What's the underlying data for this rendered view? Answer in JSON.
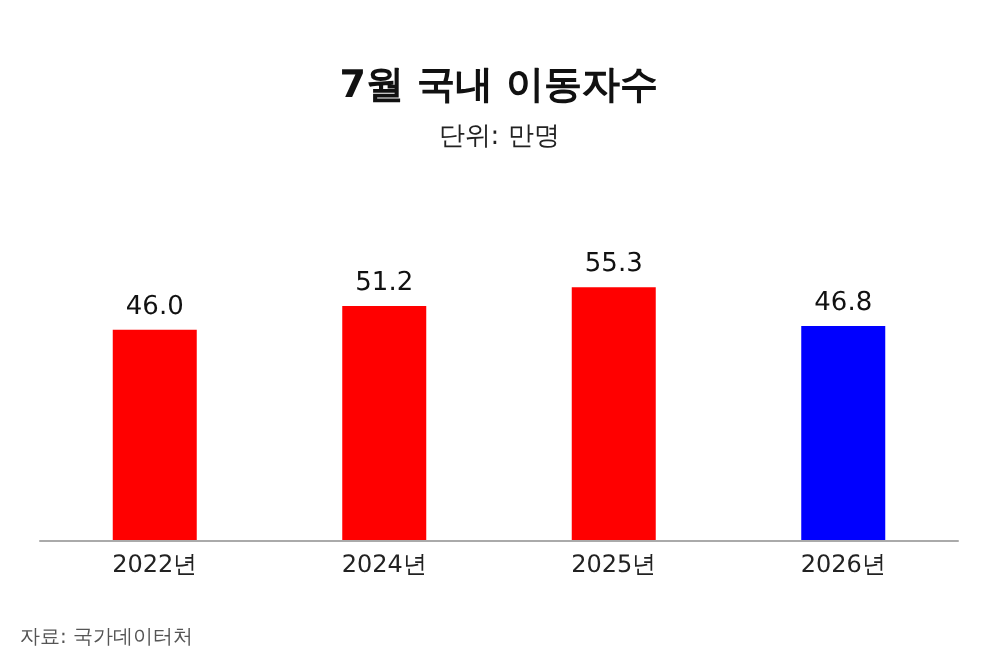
{
  "chart_data": {
    "type": "bar",
    "title": "7월 국내 이동자수",
    "subtitle": "단위: 만명",
    "categories": [
      "2022년",
      "2024년",
      "2025년",
      "2026년"
    ],
    "values": [
      46.0,
      51.2,
      55.3,
      46.8
    ],
    "value_labels": [
      "46.0",
      "51.2",
      "55.3",
      "46.8"
    ],
    "colors": [
      "#ff0000",
      "#ff0000",
      "#ff0000",
      "#0000ff"
    ],
    "annotations": [
      "자료: 국가데이터처"
    ]
  }
}
